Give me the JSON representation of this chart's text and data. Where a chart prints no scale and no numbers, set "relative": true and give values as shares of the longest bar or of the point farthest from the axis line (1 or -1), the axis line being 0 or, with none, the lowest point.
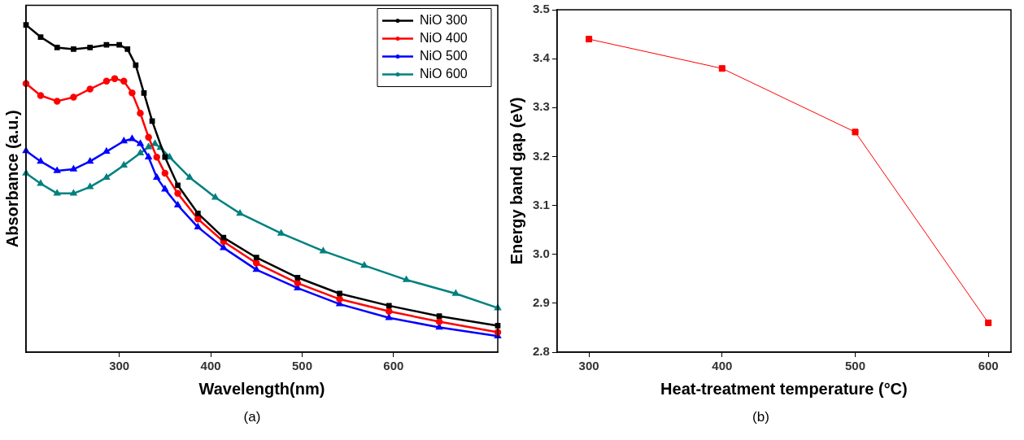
{
  "chart_data": [
    {
      "type": "line",
      "relative": true,
      "xlabel": "Wavelength(nm)",
      "ylabel": "Absorbance (a.u.)",
      "xlim": [
        198,
        714
      ],
      "xticks": [
        300,
        400,
        500,
        600
      ],
      "tick_labels": "x",
      "legend": "top right",
      "annotations": [
        "(a)"
      ],
      "series": [
        {
          "name": "NiO 300",
          "color": "#000000",
          "marker": "square",
          "x": [
            198,
            214,
            232,
            250,
            268,
            286,
            300,
            309,
            318,
            327,
            336,
            350,
            364,
            386,
            414,
            450,
            495,
            541,
            595,
            650,
            714
          ],
          "values": [
            1.0,
            0.963,
            0.931,
            0.926,
            0.931,
            0.939,
            0.939,
            0.926,
            0.877,
            0.792,
            0.706,
            0.596,
            0.51,
            0.424,
            0.35,
            0.289,
            0.228,
            0.179,
            0.142,
            0.11,
            0.081
          ]
        },
        {
          "name": "NiO 400",
          "color": "#ff0000",
          "marker": "circle",
          "x": [
            198,
            214,
            232,
            250,
            268,
            286,
            295,
            305,
            314,
            323,
            332,
            341,
            350,
            364,
            386,
            414,
            450,
            495,
            541,
            595,
            650,
            714
          ],
          "values": [
            0.821,
            0.784,
            0.767,
            0.779,
            0.804,
            0.828,
            0.836,
            0.828,
            0.792,
            0.73,
            0.657,
            0.596,
            0.547,
            0.485,
            0.407,
            0.338,
            0.272,
            0.211,
            0.162,
            0.125,
            0.093,
            0.061
          ]
        },
        {
          "name": "NiO 500",
          "color": "#0000ff",
          "marker": "triangle",
          "x": [
            198,
            214,
            232,
            250,
            268,
            286,
            305,
            314,
            323,
            332,
            341,
            350,
            364,
            386,
            414,
            450,
            495,
            541,
            595,
            650,
            714
          ],
          "values": [
            0.615,
            0.583,
            0.554,
            0.559,
            0.583,
            0.613,
            0.645,
            0.652,
            0.637,
            0.596,
            0.534,
            0.498,
            0.449,
            0.382,
            0.319,
            0.252,
            0.196,
            0.147,
            0.105,
            0.076,
            0.049
          ]
        },
        {
          "name": "NiO 600",
          "color": "#008080",
          "marker": "triangle",
          "x": [
            198,
            214,
            232,
            250,
            268,
            286,
            305,
            323,
            332,
            339,
            345,
            355,
            377,
            405,
            432,
            477,
            523,
            568,
            614,
            668,
            714
          ],
          "values": [
            0.547,
            0.515,
            0.485,
            0.485,
            0.505,
            0.534,
            0.571,
            0.608,
            0.627,
            0.637,
            0.625,
            0.596,
            0.534,
            0.473,
            0.424,
            0.363,
            0.309,
            0.265,
            0.221,
            0.179,
            0.135
          ]
        }
      ]
    },
    {
      "type": "line",
      "xlabel": "Heat-treatment temperature (°C)",
      "ylabel": "Energy band gap (eV)",
      "xlim": [
        276,
        617
      ],
      "xticks": [
        300,
        400,
        500,
        600
      ],
      "ylim": [
        2.8,
        3.5
      ],
      "yticks": [
        2.8,
        2.9,
        {
          "value": 3,
          "label": "3.0"
        },
        3.1,
        3.2,
        3.3,
        3.4,
        3.5
      ],
      "marker": "square",
      "annotations": [
        "(b)"
      ],
      "series": [
        {
          "color": "#ff0000",
          "x": [
            300,
            400,
            500,
            600
          ],
          "values": [
            3.44,
            3.38,
            3.25,
            2.86
          ]
        }
      ]
    }
  ]
}
